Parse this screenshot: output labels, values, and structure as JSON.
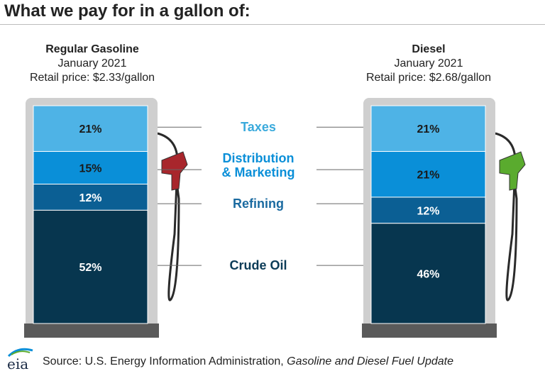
{
  "title": "What we pay for in a gallon of:",
  "source": {
    "prefix": "Source: U.S. Energy Information Administration,",
    "publication": "Gasoline and Diesel Fuel Update"
  },
  "logo_text": "eia",
  "colors": {
    "taxes": "#4eb3e6",
    "distribution": "#0a8fd8",
    "refining": "#0b5f94",
    "crude": "#07364f",
    "label_taxes": "#3aaadc",
    "label_distribution": "#0a8fd8",
    "label_refining": "#1a6aa0",
    "label_crude": "#0b3b57",
    "pump_frame": "#cfcfcf",
    "pump_base": "#5a5a5a",
    "gas_nozzle": "#a8262c",
    "diesel_nozzle": "#5aab2e"
  },
  "chart_data": {
    "type": "bar",
    "stacked": true,
    "categories": [
      "Regular Gasoline",
      "Diesel"
    ],
    "category_details": [
      {
        "name": "Regular Gasoline",
        "date": "January 2021",
        "price": "Retail price: $2.33/gallon"
      },
      {
        "name": "Diesel",
        "date": "January 2021",
        "price": "Retail price: $2.68/gallon"
      }
    ],
    "series": [
      {
        "name": "Taxes",
        "values": [
          21,
          21
        ],
        "labels": [
          "21%",
          "21%"
        ]
      },
      {
        "name": "Distribution & Marketing",
        "label_lines": [
          "Distribution",
          "& Marketing"
        ],
        "values": [
          15,
          21
        ],
        "labels": [
          "15%",
          "21%"
        ]
      },
      {
        "name": "Refining",
        "values": [
          12,
          12
        ],
        "labels": [
          "12%",
          "12%"
        ]
      },
      {
        "name": "Crude Oil",
        "values": [
          52,
          46
        ],
        "labels": [
          "52%",
          "46%"
        ]
      }
    ],
    "ylim": [
      0,
      100
    ],
    "unit": "%"
  }
}
